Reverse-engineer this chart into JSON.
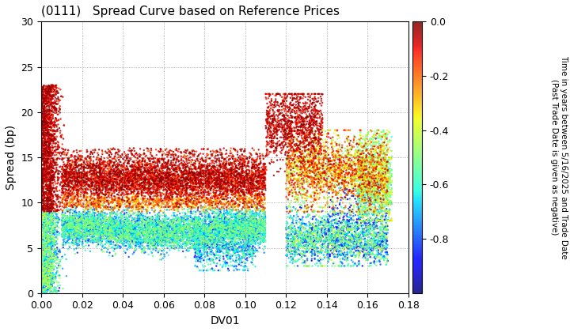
{
  "title": "(0111)   Spread Curve based on Reference Prices",
  "xlabel": "DV01",
  "ylabel": "Spread (bp)",
  "xlim": [
    0,
    0.18
  ],
  "ylim": [
    0,
    30
  ],
  "xticks": [
    0.0,
    0.02,
    0.04,
    0.06,
    0.08,
    0.1,
    0.12,
    0.14,
    0.16,
    0.18
  ],
  "yticks": [
    0,
    5,
    10,
    15,
    20,
    25,
    30
  ],
  "colorbar_label_line1": "Time in years between 5/16/2025 and Trade Date",
  "colorbar_label_line2": "(Past Trade Date is given as negative)",
  "cbar_ticks": [
    0.0,
    -0.2,
    -0.4,
    -0.6,
    -0.8
  ],
  "cmap": "jet",
  "vmin": -1.0,
  "vmax": 0.0,
  "point_size": 3.0,
  "alpha": 0.85,
  "seed": 42,
  "background_color": "#ffffff",
  "grid_color": "#999999",
  "grid_style": "dotted"
}
